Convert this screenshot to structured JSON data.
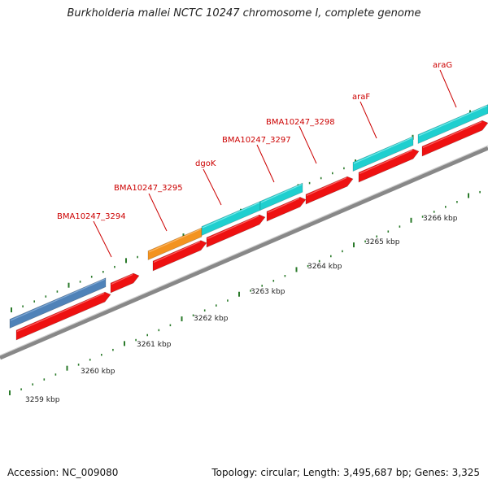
{
  "title": "Burkholderia mallei NCTC 10247 chromosome I, complete genome",
  "accession_text": "Accession: NC_009080",
  "stats_text": "Topology: circular; Length: 3,495,687 bp; Genes: 3,325",
  "colors": {
    "backbone": "#888888",
    "cds": "#ee1111",
    "gene_blue": "#4f82b8",
    "gene_orange": "#f39320",
    "gene_cyan": "#1fcfcf",
    "label": "#cc0000",
    "tick": "#2a7a2a"
  },
  "ruler_labels": [
    "3259 kbp",
    "3260 kbp",
    "3261 kbp",
    "3262 kbp",
    "3263 kbp",
    "3264 kbp",
    "3265 kbp",
    "3266 kbp"
  ],
  "gene_labels": [
    "BMA10247_3294",
    "BMA10247_3295",
    "dgoK",
    "BMA10247_3297",
    "BMA10247_3298",
    "araF",
    "araG"
  ]
}
